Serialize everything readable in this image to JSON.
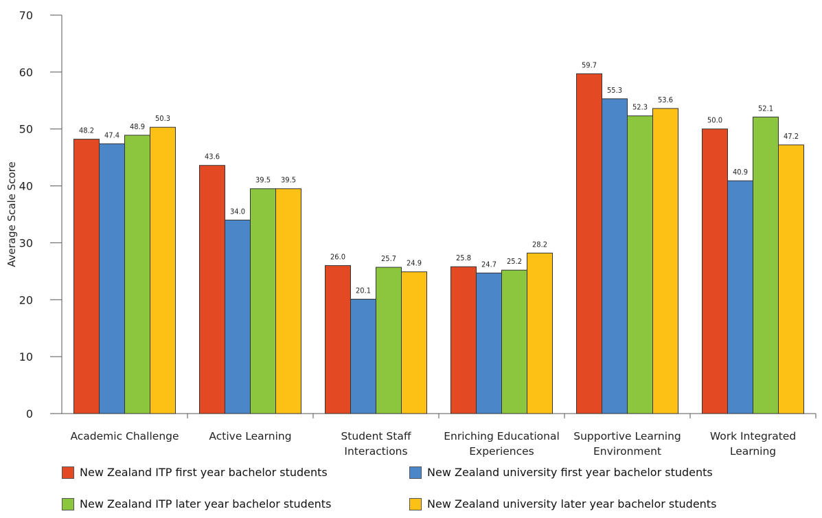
{
  "chart_data": {
    "type": "bar",
    "ylabel": "Average Scale Score",
    "ylim": [
      0,
      70
    ],
    "yticks": [
      0,
      10,
      20,
      30,
      40,
      50,
      60,
      70
    ],
    "grid": false,
    "legend_position": "bottom",
    "categories": [
      [
        "Academic Challenge"
      ],
      [
        "Active Learning"
      ],
      [
        "Student Staff",
        "Interactions"
      ],
      [
        "Enriching Educational",
        "Experiences"
      ],
      [
        "Supportive Learning",
        "Environment"
      ],
      [
        "Work Integrated",
        "Learning"
      ]
    ],
    "series": [
      {
        "name": "New Zealand ITP first year bachelor students",
        "color": "#e34a24",
        "values": [
          48.2,
          43.6,
          26.0,
          25.8,
          59.7,
          50.0
        ],
        "labels": [
          "48.2",
          "43.6",
          "26.0",
          "25.8",
          "59.7",
          "50.0"
        ]
      },
      {
        "name": "New Zealand university first year bachelor students",
        "color": "#4a86c8",
        "values": [
          47.4,
          34.0,
          20.1,
          24.7,
          55.3,
          40.9
        ],
        "labels": [
          "47.4",
          "34.0",
          "20.1",
          "24.7",
          "55.3",
          "40.9"
        ]
      },
      {
        "name": "New Zealand ITP later year bachelor students",
        "color": "#8cc63f",
        "values": [
          48.9,
          39.5,
          25.7,
          25.2,
          52.3,
          52.1
        ],
        "labels": [
          "48.9",
          "39.5",
          "25.7",
          "25.2",
          "52.3",
          "52.1"
        ]
      },
      {
        "name": "New Zealand university later year bachelor students",
        "color": "#fdc116",
        "values": [
          50.3,
          39.5,
          24.9,
          28.2,
          53.6,
          47.2
        ],
        "labels": [
          "50.3",
          "39.5",
          "24.9",
          "28.2",
          "53.6",
          "47.2"
        ]
      }
    ]
  }
}
